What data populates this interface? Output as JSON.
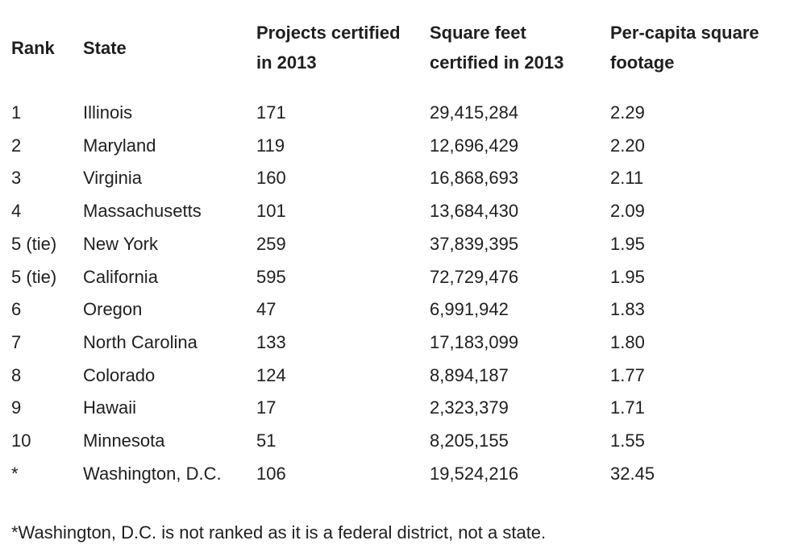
{
  "table": {
    "headers": {
      "rank": "Rank",
      "state": "State",
      "projects_line1": "Projects certified",
      "projects_line2": "in 2013",
      "sqft_line1": "Square feet",
      "sqft_line2": "certified in 2013",
      "percapita_line1": "Per-capita square",
      "percapita_line2": "footage"
    },
    "rows": [
      {
        "rank": "1",
        "state": "Illinois",
        "projects": "171",
        "sqft": "29,415,284",
        "per_capita": "2.29"
      },
      {
        "rank": "2",
        "state": "Maryland",
        "projects": "119",
        "sqft": "12,696,429",
        "per_capita": "2.20"
      },
      {
        "rank": "3",
        "state": "Virginia",
        "projects": "160",
        "sqft": "16,868,693",
        "per_capita": "2.11"
      },
      {
        "rank": "4",
        "state": "Massachusetts",
        "projects": "101",
        "sqft": "13,684,430",
        "per_capita": "2.09"
      },
      {
        "rank": "5 (tie)",
        "state": "New York",
        "projects": "259",
        "sqft": "37,839,395",
        "per_capita": "1.95"
      },
      {
        "rank": "5 (tie)",
        "state": "California",
        "projects": "595",
        "sqft": "72,729,476",
        "per_capita": "1.95"
      },
      {
        "rank": "6",
        "state": "Oregon",
        "projects": "47",
        "sqft": "6,991,942",
        "per_capita": "1.83"
      },
      {
        "rank": "7",
        "state": "North Carolina",
        "projects": "133",
        "sqft": "17,183,099",
        "per_capita": "1.80"
      },
      {
        "rank": "8",
        "state": "Colorado",
        "projects": "124",
        "sqft": "8,894,187",
        "per_capita": "1.77"
      },
      {
        "rank": "9",
        "state": "Hawaii",
        "projects": "17",
        "sqft": "2,323,379",
        "per_capita": "1.71"
      },
      {
        "rank": "10",
        "state": "Minnesota",
        "projects": "51",
        "sqft": "8,205,155",
        "per_capita": "1.55"
      },
      {
        "rank": "*",
        "state": "Washington, D.C.",
        "projects": "106",
        "sqft": "19,524,216",
        "per_capita": "32.45"
      }
    ]
  },
  "footnote": "*Washington, D.C. is not ranked as it is a federal district, not a state."
}
